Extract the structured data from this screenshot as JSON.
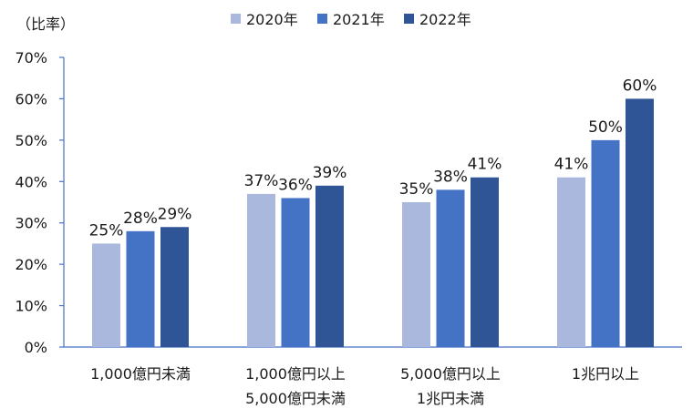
{
  "chart_data": {
    "type": "bar",
    "ylabel": "（比率）",
    "categories": [
      [
        "1,000億円未満"
      ],
      [
        "1,000億円以上",
        "5,000億円未満"
      ],
      [
        "5,000億円以上",
        "1兆円未満"
      ],
      [
        "1兆円以上"
      ]
    ],
    "series": [
      {
        "name": "2020年",
        "color": "#a9b8dc",
        "values": [
          25,
          37,
          35,
          41
        ],
        "labels": [
          "25%",
          "37%",
          "35%",
          "41%"
        ]
      },
      {
        "name": "2021年",
        "color": "#4472c4",
        "values": [
          28,
          36,
          38,
          50
        ],
        "labels": [
          "28%",
          "36%",
          "38%",
          "50%"
        ]
      },
      {
        "name": "2022年",
        "color": "#2f5597",
        "values": [
          29,
          39,
          41,
          60
        ],
        "labels": [
          "29%",
          "39%",
          "41%",
          "60%"
        ]
      }
    ],
    "ylim": [
      0,
      70
    ],
    "yticks": [
      0,
      10,
      20,
      30,
      40,
      50,
      60,
      70
    ],
    "ytick_labels": [
      "0%",
      "10%",
      "20%",
      "30%",
      "40%",
      "50%",
      "60%",
      "70%"
    ],
    "grid": false,
    "legend_position": "top"
  }
}
